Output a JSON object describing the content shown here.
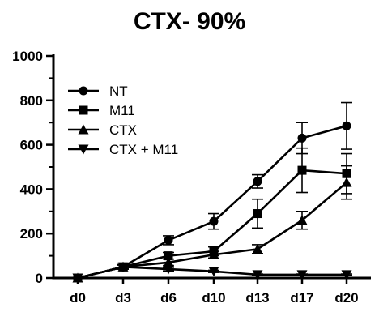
{
  "chart_data": {
    "type": "line",
    "title": "CTX- 90%",
    "xlabel": "",
    "ylabel": "",
    "categories": [
      "d0",
      "d3",
      "d6",
      "d10",
      "d13",
      "d17",
      "d20"
    ],
    "ylim": [
      0,
      1000
    ],
    "yticks": [
      0,
      200,
      400,
      600,
      800,
      1000
    ],
    "grid": false,
    "legend_position": "top-left",
    "series": [
      {
        "name": "NT",
        "marker": "circle",
        "values": [
          0,
          50,
          170,
          255,
          435,
          630,
          685
        ],
        "errors": [
          0,
          10,
          20,
          35,
          30,
          70,
          105
        ]
      },
      {
        "name": "M11",
        "marker": "square",
        "values": [
          0,
          50,
          100,
          120,
          290,
          485,
          470
        ],
        "errors": [
          0,
          10,
          15,
          20,
          65,
          100,
          90
        ]
      },
      {
        "name": "CTX",
        "marker": "triangle-up",
        "values": [
          0,
          50,
          70,
          105,
          130,
          260,
          430
        ],
        "errors": [
          0,
          10,
          15,
          15,
          20,
          40,
          75
        ]
      },
      {
        "name": "CTX + M11",
        "marker": "triangle-down",
        "values": [
          0,
          50,
          40,
          30,
          15,
          15,
          15
        ],
        "errors": [
          0,
          8,
          8,
          5,
          3,
          3,
          3
        ]
      }
    ]
  }
}
